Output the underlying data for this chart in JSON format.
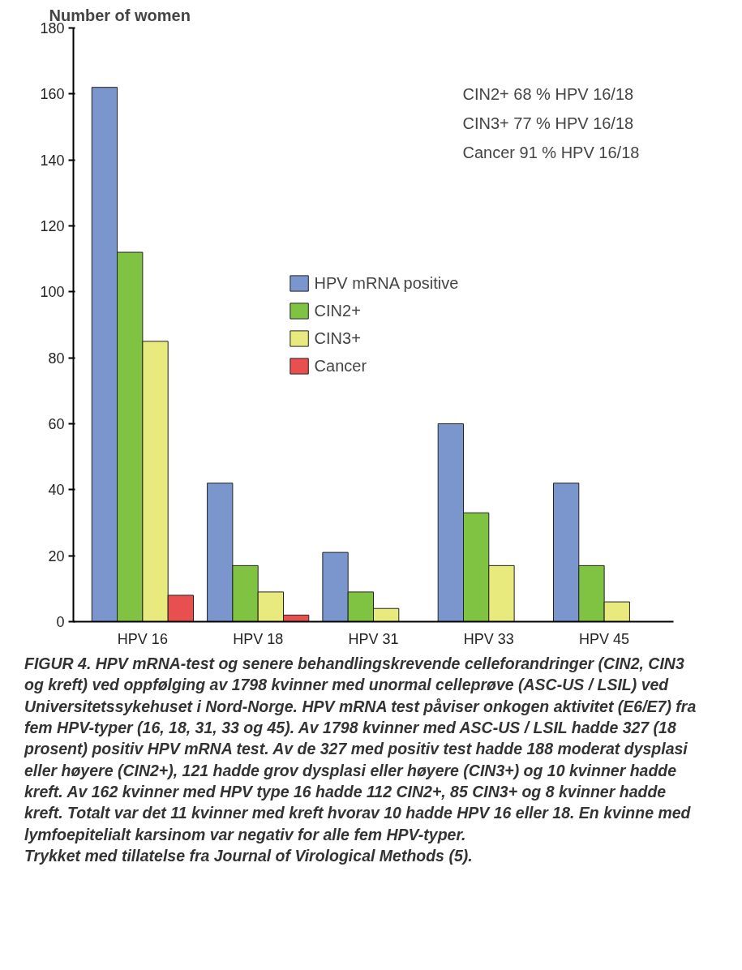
{
  "chart_data": {
    "type": "bar",
    "ylabel": "Number of women",
    "categories": [
      "HPV 16",
      "HPV 18",
      "HPV 31",
      "HPV 33",
      "HPV 45"
    ],
    "series": [
      {
        "name": "HPV mRNA positive",
        "color": "#7b96cc",
        "values": [
          162,
          42,
          21,
          60,
          42
        ]
      },
      {
        "name": "CIN2+",
        "color": "#80c342",
        "values": [
          112,
          17,
          9,
          33,
          17
        ]
      },
      {
        "name": "CIN3+",
        "color": "#e8ea7e",
        "values": [
          85,
          9,
          4,
          17,
          6
        ]
      },
      {
        "name": "Cancer",
        "color": "#e8504f",
        "values": [
          8,
          2,
          null,
          null,
          null
        ]
      }
    ],
    "ylim": [
      0,
      180
    ],
    "yticks": [
      0,
      20,
      40,
      60,
      80,
      100,
      120,
      140,
      160,
      180
    ],
    "grid": false,
    "legend": "center",
    "annotations": [
      "CIN2+ 68 % HPV 16/18",
      "CIN3+ 77 % HPV 16/18",
      "Cancer 91 % HPV 16/18",
      "FIGUR 4. HPV mRNA-test og senere behandlingskrevende celleforandringer (CIN2, CIN3 og kreft) ved oppfølging av 1798 kvinner med unormal celleprøve (ASC-US / LSIL) ved Universitetssykehuset i Nord-Norge. HPV mRNA test påviser onkogen aktivitet (E6/E7) fra fem HPV-typer (16, 18, 31, 33 og 45). Av 1798 kvinner med ASC-US / LSIL hadde 327 (18 prosent) positiv HPV mRNA test. Av de 327 med positiv test hadde 188 moderat dysplasi eller høyere (CIN2+), 121 hadde grov dysplasi eller høyere (CIN3+) og 10 kvinner hadde kreft. Av 162 kvinner med HPV type 16 hadde 112 CIN2+, 85 CIN3+ og 8 kvinner hadde kreft. Totalt var det 11 kvinner med kreft hvorav 10 hadde HPV 16 eller 18. En kvinne med lymfoepitelialt karsinom var negativ for alle fem HPV-typer.",
      "Trykket med tillatelse fra Journal of Virological Methods (5)."
    ]
  }
}
